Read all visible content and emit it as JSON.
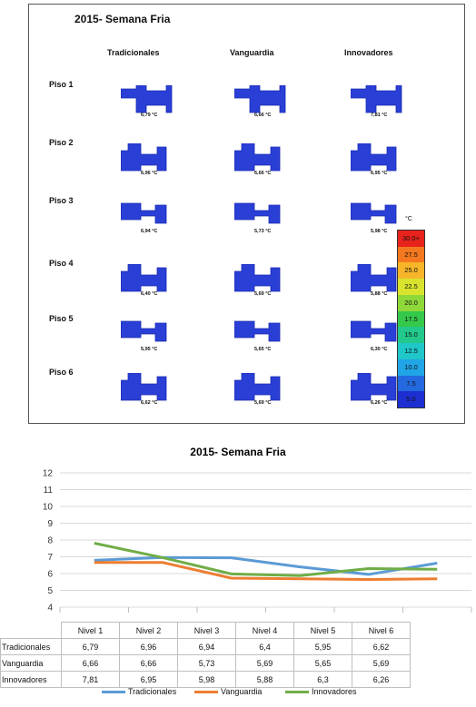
{
  "heatmap": {
    "title": "2015- Semana Fria",
    "groups": [
      "Tradicionales",
      "Vanguardia",
      "Innovadores"
    ],
    "floors": [
      {
        "label": "Piso 1",
        "temps": [
          "6,79 °C",
          "6,66 °C",
          "7,81 °C"
        ]
      },
      {
        "label": "Piso 2",
        "temps": [
          "6,96 °C",
          "6,66 °C",
          "6,95 °C"
        ]
      },
      {
        "label": "Piso 3",
        "temps": [
          "6,94 °C",
          "5,73 °C",
          "5,98 °C"
        ]
      },
      {
        "label": "Piso 4",
        "temps": [
          "6,40 °C",
          "5,69 °C",
          "5,88 °C"
        ]
      },
      {
        "label": "Piso 5",
        "temps": [
          "5,95 °C",
          "5,65 °C",
          "6,30 °C"
        ]
      },
      {
        "label": "Piso 6",
        "temps": [
          "6,62 °C",
          "5,69 °C",
          "6,26 °C"
        ]
      }
    ],
    "legend": {
      "unit": "°C",
      "stops": [
        {
          "label": "30.0+",
          "color": "#e8231c"
        },
        {
          "label": "27.5",
          "color": "#f4781f"
        },
        {
          "label": "25.0",
          "color": "#f7b52a"
        },
        {
          "label": "22.5",
          "color": "#d9e32e"
        },
        {
          "label": "20.0",
          "color": "#8fd83a"
        },
        {
          "label": "17.5",
          "color": "#35c84a"
        },
        {
          "label": "15.0",
          "color": "#22c98a"
        },
        {
          "label": "12.5",
          "color": "#1fc7c9"
        },
        {
          "label": "10.0",
          "color": "#20a5e6"
        },
        {
          "label": "7.5",
          "color": "#2469e0"
        },
        {
          "label": "5.0",
          "color": "#1d2fd1"
        }
      ]
    }
  },
  "chart_data": {
    "type": "line",
    "title": "2015- Semana Fria",
    "categories": [
      "Nivel 1",
      "Nivel 2",
      "Nivel 3",
      "Nivel 4",
      "Nivel 5",
      "Nivel 6"
    ],
    "ylim": [
      4,
      12
    ],
    "yticks": [
      "4",
      "5",
      "6",
      "7",
      "8",
      "9",
      "10",
      "11",
      "12"
    ],
    "grid": true,
    "legend_position": "bottom",
    "series": [
      {
        "name": "Tradicionales",
        "color": "#5b9bd5",
        "values": [
          6.79,
          6.96,
          6.94,
          6.4,
          5.95,
          6.62
        ],
        "labels": [
          "6,79",
          "6,96",
          "6,94",
          "6,4",
          "5,95",
          "6,62"
        ]
      },
      {
        "name": "Vanguardia",
        "color": "#ed7d31",
        "values": [
          6.66,
          6.66,
          5.73,
          5.69,
          5.65,
          5.69
        ],
        "labels": [
          "6,66",
          "6,66",
          "5,73",
          "5,69",
          "5,65",
          "5,69"
        ]
      },
      {
        "name": "Innovadores",
        "color": "#70ad47",
        "values": [
          7.81,
          6.95,
          5.98,
          5.88,
          6.3,
          6.26
        ],
        "labels": [
          "7,81",
          "6,95",
          "5,98",
          "5,88",
          "6,3",
          "6,26"
        ]
      }
    ]
  }
}
